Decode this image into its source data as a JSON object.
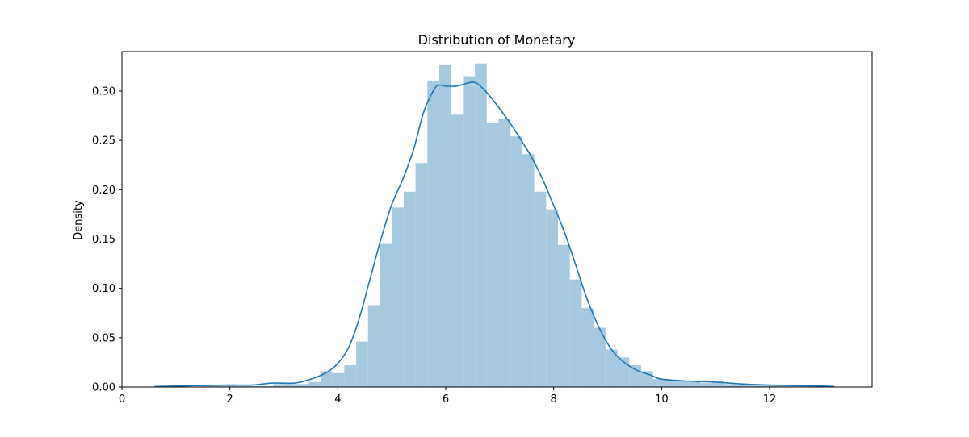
{
  "chart_data": {
    "type": "bar",
    "title": "Distribution of Monetary",
    "xlabel": "",
    "ylabel": "Density",
    "xlim": [
      0,
      13.9
    ],
    "ylim": [
      0,
      0.34
    ],
    "x_ticks": [
      0,
      2,
      4,
      6,
      8,
      10,
      12
    ],
    "y_ticks": [
      0.0,
      0.05,
      0.1,
      0.15,
      0.2,
      0.25,
      0.3
    ],
    "y_tick_labels": [
      "0.00",
      "0.05",
      "0.10",
      "0.15",
      "0.20",
      "0.25",
      "0.30"
    ],
    "grid": false,
    "legend": "none",
    "bar_color": "#a6c9e2",
    "line_color": "#1f77b4",
    "histogram": {
      "bin_edges": [
        0.6,
        0.82,
        1.04,
        1.26,
        1.48,
        1.7,
        1.92,
        2.14,
        2.36,
        2.58,
        2.8,
        3.02,
        3.24,
        3.46,
        3.68,
        3.9,
        4.12,
        4.34,
        4.56,
        4.78,
        5.0,
        5.22,
        5.44,
        5.66,
        5.88,
        6.1,
        6.32,
        6.54,
        6.76,
        6.98,
        7.2,
        7.42,
        7.64,
        7.86,
        8.08,
        8.3,
        8.52,
        8.74,
        8.96,
        9.18,
        9.4,
        9.62,
        9.84,
        10.06,
        10.28,
        10.5,
        10.72,
        10.94,
        11.16,
        11.38,
        11.6,
        11.82,
        12.04,
        12.26,
        12.48,
        12.7,
        12.92,
        13.14
      ],
      "density": [
        0.001,
        0.0005,
        0.0005,
        0.0005,
        0.001,
        0.001,
        0.002,
        0.001,
        0.001,
        0.001,
        0.003,
        0.003,
        0.003,
        0.005,
        0.016,
        0.014,
        0.022,
        0.046,
        0.083,
        0.145,
        0.182,
        0.198,
        0.227,
        0.31,
        0.327,
        0.276,
        0.315,
        0.328,
        0.268,
        0.272,
        0.254,
        0.236,
        0.198,
        0.18,
        0.144,
        0.109,
        0.08,
        0.06,
        0.038,
        0.03,
        0.022,
        0.016,
        0.008,
        0.007,
        0.006,
        0.005,
        0.004,
        0.006,
        0.003,
        0.002,
        0.002,
        0.002,
        0.002,
        0.002,
        0.001,
        0.001,
        0.0005
      ]
    },
    "kde": {
      "x": [
        0.6,
        1.0,
        1.5,
        2.0,
        2.4,
        2.8,
        3.2,
        3.5,
        3.8,
        4.0,
        4.2,
        4.4,
        4.6,
        4.8,
        5.0,
        5.2,
        5.4,
        5.6,
        5.8,
        5.9,
        6.0,
        6.2,
        6.4,
        6.5,
        6.6,
        6.8,
        7.0,
        7.2,
        7.4,
        7.6,
        7.8,
        8.0,
        8.2,
        8.4,
        8.6,
        8.8,
        9.0,
        9.2,
        9.5,
        9.8,
        10.0,
        10.5,
        11.0,
        11.5,
        12.0,
        12.5,
        13.0,
        13.2
      ],
      "y": [
        0.0005,
        0.001,
        0.0015,
        0.002,
        0.002,
        0.004,
        0.004,
        0.008,
        0.015,
        0.024,
        0.04,
        0.07,
        0.11,
        0.15,
        0.185,
        0.21,
        0.24,
        0.28,
        0.303,
        0.306,
        0.305,
        0.305,
        0.308,
        0.309,
        0.307,
        0.296,
        0.282,
        0.267,
        0.25,
        0.232,
        0.21,
        0.184,
        0.157,
        0.125,
        0.092,
        0.065,
        0.044,
        0.03,
        0.018,
        0.012,
        0.008,
        0.006,
        0.005,
        0.003,
        0.002,
        0.0015,
        0.001,
        0.0005
      ]
    }
  }
}
